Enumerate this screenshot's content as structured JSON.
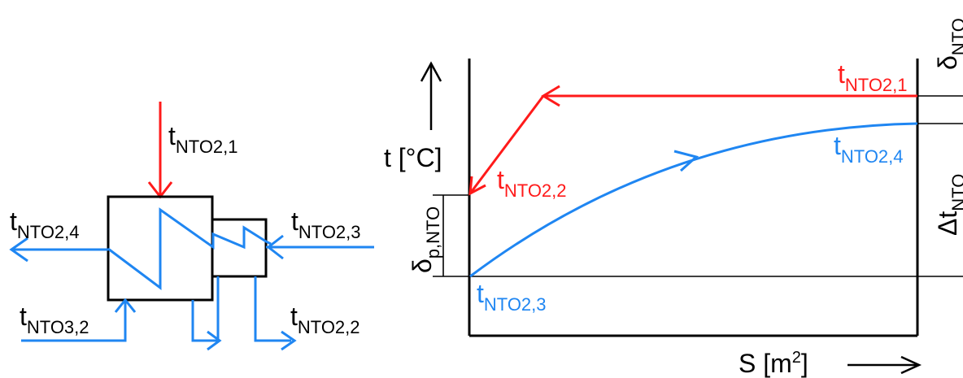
{
  "colors": {
    "hot": "#ff1a1a",
    "cold": "#1f86f2",
    "ink": "#000000"
  },
  "exchanger": {
    "t_in_hot": {
      "base": "t",
      "sub": "NTO2,1"
    },
    "t_out_cold": {
      "base": "t",
      "sub": "NTO2,4"
    },
    "t_in_cold": {
      "base": "t",
      "sub": "NTO2,3"
    },
    "t_nto32": {
      "base": "t",
      "sub": "NTO3,2"
    },
    "t_out_hot": {
      "base": "t",
      "sub": "NTO2,2"
    }
  },
  "graph": {
    "y_axis": "t [°C]",
    "x_axis_base": "S [m",
    "x_axis_sup": "2",
    "x_axis_end": "]",
    "label_hot_in": {
      "base": "t",
      "sub": "NTO2,1"
    },
    "label_cold_out": {
      "base": "t",
      "sub": "NTO2,4"
    },
    "label_hot_out": {
      "base": "t",
      "sub": "NTO2,2"
    },
    "label_cold_in": {
      "base": "t",
      "sub": "NTO2,3"
    },
    "delta_p": {
      "base": "δ",
      "sub": "p,NTO"
    },
    "delta_nto": {
      "base": "δ",
      "sub": "NTO"
    },
    "dt_nto": {
      "base": "Δt",
      "sub": "NTO"
    }
  }
}
